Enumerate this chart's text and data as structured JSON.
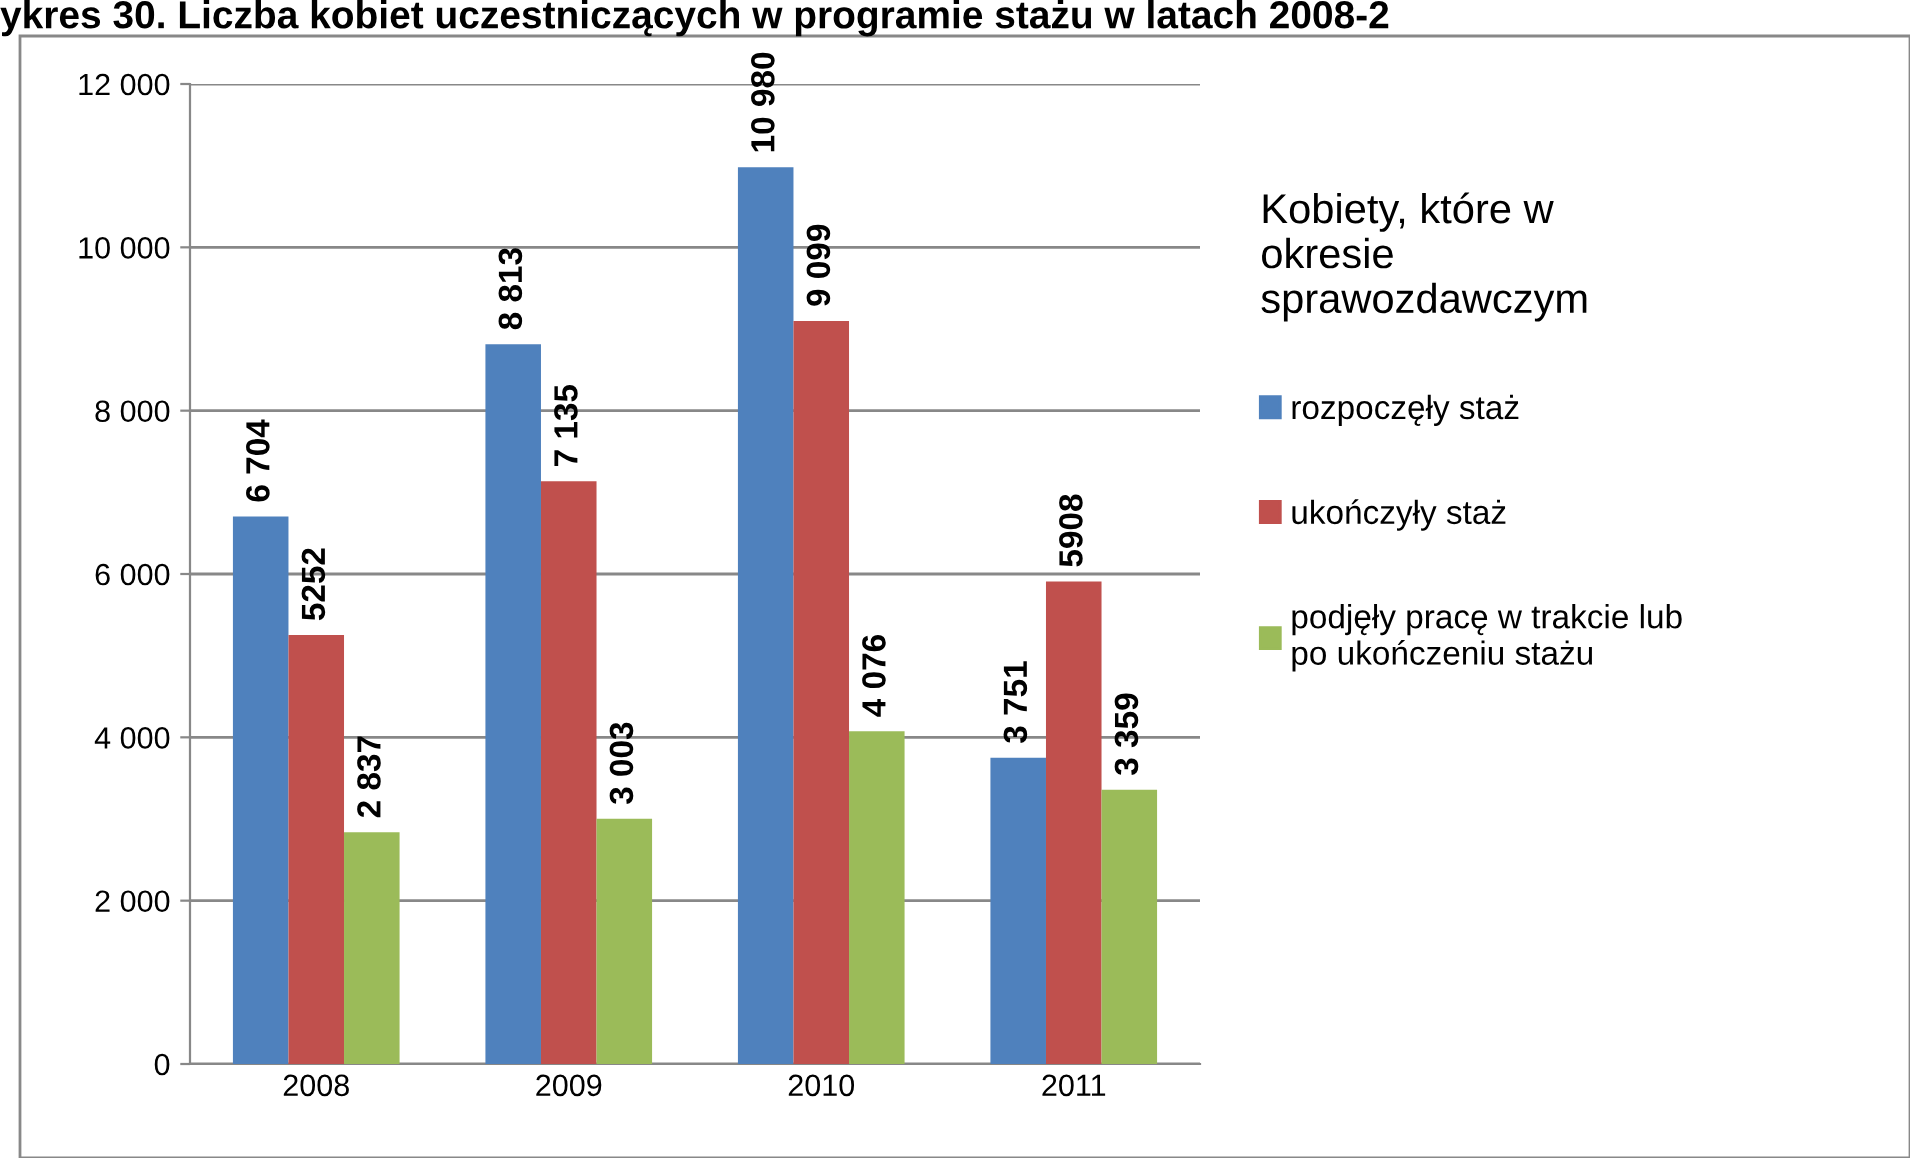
{
  "chart_data": {
    "type": "bar",
    "title": "ykres 30. Liczba kobiet uczestniczących w programie stażu w latach 2008-2",
    "categories": [
      "2008",
      "2009",
      "2010",
      "2011"
    ],
    "series": [
      {
        "name": "rozpoczęły staż",
        "color": "#4f81bd",
        "values": [
          6704,
          8813,
          10980,
          3751
        ],
        "value_labels": [
          "6 704",
          "8 813",
          "10 980",
          "3 751"
        ]
      },
      {
        "name": "ukończyły staż",
        "color": "#c0504d",
        "values": [
          5252,
          7135,
          9099,
          5908
        ],
        "value_labels": [
          "5252",
          "7 135",
          "9 099",
          "5908"
        ]
      },
      {
        "name": "podjęły pracę w trakcie lub po ukończeniu stażu",
        "color": "#9bbb59",
        "values": [
          2837,
          3003,
          4076,
          3359
        ],
        "value_labels": [
          "2 837",
          "3 003",
          "4 076",
          "3 359"
        ]
      }
    ],
    "legend_title": "Kobiety, które w\nokresie\nsprawozdawczym",
    "ylim": [
      0,
      12000
    ],
    "yticks": [
      {
        "value": 0,
        "label": "0"
      },
      {
        "value": 2000,
        "label": "2 000"
      },
      {
        "value": 4000,
        "label": "4 000"
      },
      {
        "value": 6000,
        "label": "6 000"
      },
      {
        "value": 8000,
        "label": "8 000"
      },
      {
        "value": 10000,
        "label": "10 000"
      },
      {
        "value": 12000,
        "label": "12 000"
      }
    ],
    "grid": "y",
    "legend": "right"
  }
}
